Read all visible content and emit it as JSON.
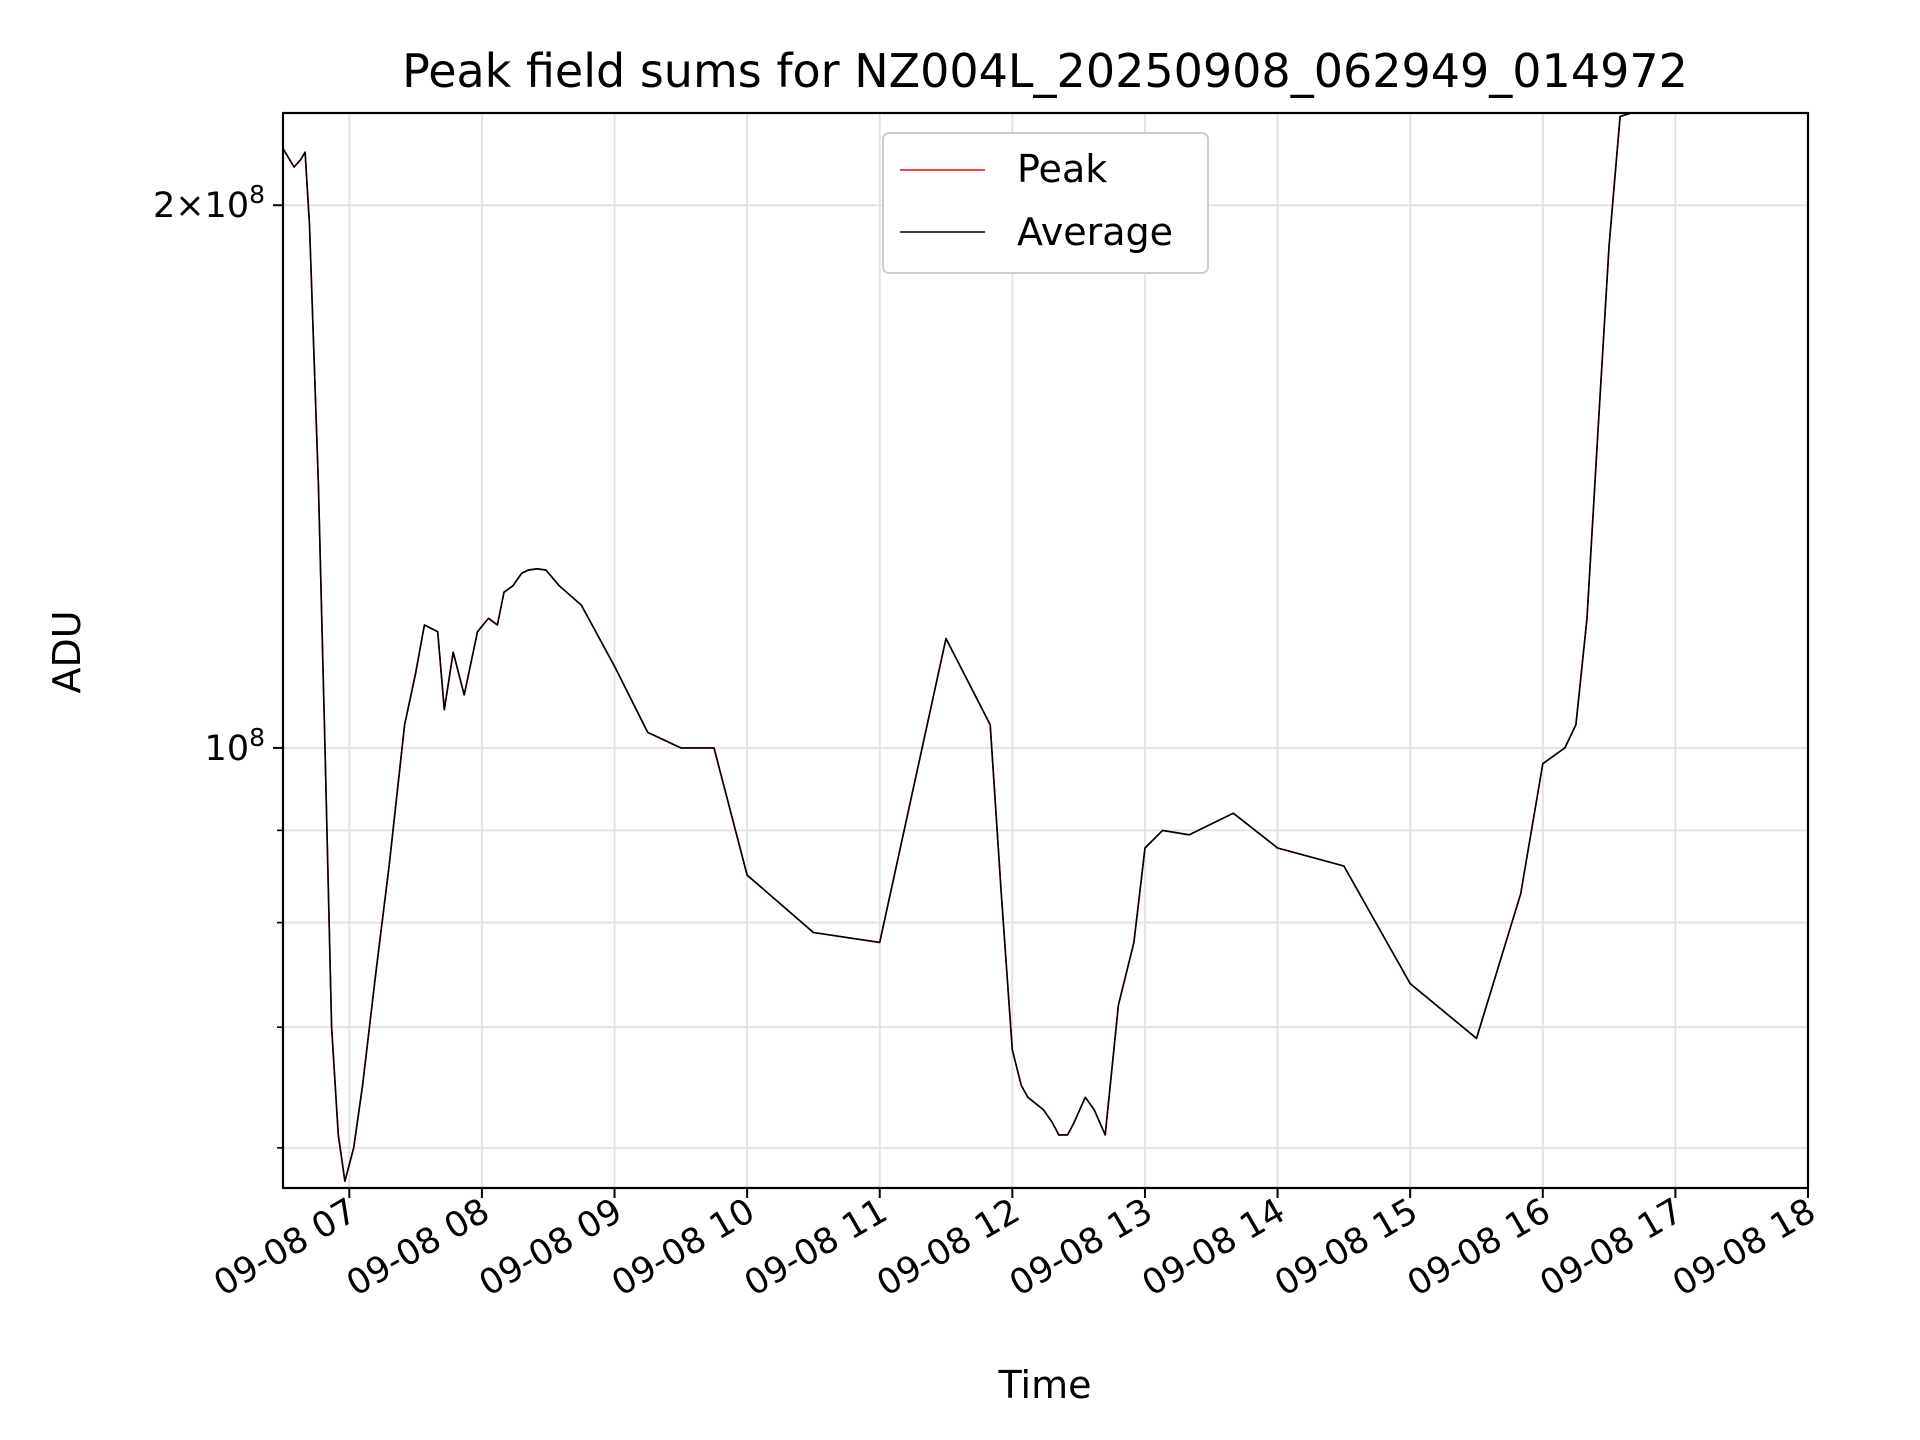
{
  "chart_data": {
    "type": "line",
    "title": "Peak field sums for NZ004L_20250908_062949_014972",
    "xlabel": "Time",
    "ylabel": "ADU",
    "y_scale": "log",
    "grid": true,
    "legend_position": "top-center",
    "xlim": [
      "09-08 06:30",
      "09-08 18:00"
    ],
    "ylim": [
      57000000,
      225000000
    ],
    "x_ticks": [
      "09-08 07",
      "09-08 08",
      "09-08 09",
      "09-08 10",
      "09-08 11",
      "09-08 12",
      "09-08 13",
      "09-08 14",
      "09-08 15",
      "09-08 16",
      "09-08 17",
      "09-08 18"
    ],
    "y_tick_labels": [
      {
        "value": 200000000,
        "base": "2×10",
        "exp": "8"
      },
      {
        "value": 100000000,
        "base": "10",
        "exp": "8"
      }
    ],
    "y_minor_ticks": [
      60000000,
      70000000,
      80000000,
      90000000
    ],
    "colors": {
      "Peak": "#ff0000",
      "Average": "#000000"
    },
    "series": [
      {
        "name": "Peak",
        "x": [
          "09-08 06:30",
          "09-08 06:35",
          "09-08 06:38",
          "09-08 06:40",
          "09-08 06:42",
          "09-08 06:46",
          "09-08 06:49",
          "09-08 06:52",
          "09-08 06:55",
          "09-08 06:58",
          "09-08 07:02",
          "09-08 07:06",
          "09-08 07:12",
          "09-08 07:18",
          "09-08 07:25",
          "09-08 07:30",
          "09-08 07:34",
          "09-08 07:40",
          "09-08 07:43",
          "09-08 07:47",
          "09-08 07:52",
          "09-08 07:58",
          "09-08 08:03",
          "09-08 08:07",
          "09-08 08:10",
          "09-08 08:14",
          "09-08 08:18",
          "09-08 08:21",
          "09-08 08:25",
          "09-08 08:29",
          "09-08 08:35",
          "09-08 08:45",
          "09-08 09:00",
          "09-08 09:15",
          "09-08 09:30",
          "09-08 09:45",
          "09-08 10:00",
          "09-08 10:30",
          "09-08 11:00",
          "09-08 11:30",
          "09-08 11:50",
          "09-08 11:55",
          "09-08 12:00",
          "09-08 12:04",
          "09-08 12:07",
          "09-08 12:14",
          "09-08 12:18",
          "09-08 12:21",
          "09-08 12:25",
          "09-08 12:28",
          "09-08 12:33",
          "09-08 12:37",
          "09-08 12:42",
          "09-08 12:48",
          "09-08 12:55",
          "09-08 13:00",
          "09-08 13:08",
          "09-08 13:20",
          "09-08 13:40",
          "09-08 14:00",
          "09-08 14:30",
          "09-08 15:00",
          "09-08 15:30",
          "09-08 15:50",
          "09-08 16:00",
          "09-08 16:10",
          "09-08 16:15",
          "09-08 16:20",
          "09-08 16:25",
          "09-08 16:30",
          "09-08 16:35",
          "09-08 16:40",
          "09-08 16:45",
          "09-08 16:50",
          "09-08 16:55",
          "09-08 17:00",
          "09-08 17:05",
          "09-08 17:10",
          "09-08 17:13",
          "09-08 17:16",
          "09-08 17:20",
          "09-08 17:23",
          "09-08 17:26",
          "09-08 17:30",
          "09-08 17:35",
          "09-08 17:40",
          "09-08 17:45",
          "09-08 17:50",
          "09-08 17:54",
          "09-08 17:57",
          "09-08 18:00"
        ],
        "y": [
          215000000,
          210000000,
          212000000,
          214000000,
          195000000,
          140000000,
          100000000,
          70000000,
          61000000,
          57500000,
          60000000,
          65000000,
          75000000,
          86000000,
          103000000,
          110000000,
          117000000,
          116000000,
          105000000,
          113000000,
          107000000,
          116000000,
          118000000,
          117000000,
          122000000,
          123000000,
          125000000,
          125500000,
          125700000,
          125500000,
          123000000,
          120000000,
          111000000,
          102000000,
          100000000,
          100000000,
          85000000,
          79000000,
          78000000,
          115000000,
          103000000,
          83000000,
          68000000,
          65000000,
          64000000,
          63000000,
          62000000,
          61000000,
          61000000,
          62000000,
          64000000,
          63000000,
          61000000,
          72000000,
          78000000,
          88000000,
          90000000,
          89500000,
          92000000,
          88000000,
          86000000,
          74000000,
          69000000,
          83000000,
          98000000,
          100000000,
          103000000,
          118000000,
          150000000,
          190000000,
          224000000,
          225000000,
          225000000,
          225000000,
          225000000,
          225000000,
          225000000,
          225000000,
          225000000,
          225000000,
          225000000,
          225000000,
          225000000,
          225000000,
          225000000,
          225000000,
          225000000,
          225000000,
          225000000,
          225000000,
          225000000
        ]
      },
      {
        "name": "Average",
        "x": [
          "09-08 06:30",
          "09-08 06:35",
          "09-08 06:38",
          "09-08 06:40",
          "09-08 06:42",
          "09-08 06:46",
          "09-08 06:49",
          "09-08 06:52",
          "09-08 06:55",
          "09-08 06:58",
          "09-08 07:02",
          "09-08 07:06",
          "09-08 07:12",
          "09-08 07:18",
          "09-08 07:25",
          "09-08 07:30",
          "09-08 07:34",
          "09-08 07:40",
          "09-08 07:43",
          "09-08 07:47",
          "09-08 07:52",
          "09-08 07:58",
          "09-08 08:03",
          "09-08 08:07",
          "09-08 08:10",
          "09-08 08:14",
          "09-08 08:18",
          "09-08 08:21",
          "09-08 08:25",
          "09-08 08:29",
          "09-08 08:35",
          "09-08 08:45",
          "09-08 09:00",
          "09-08 09:15",
          "09-08 09:30",
          "09-08 09:45",
          "09-08 10:00",
          "09-08 10:30",
          "09-08 11:00",
          "09-08 11:30",
          "09-08 11:50",
          "09-08 11:55",
          "09-08 12:00",
          "09-08 12:04",
          "09-08 12:07",
          "09-08 12:14",
          "09-08 12:18",
          "09-08 12:21",
          "09-08 12:25",
          "09-08 12:28",
          "09-08 12:33",
          "09-08 12:37",
          "09-08 12:42",
          "09-08 12:48",
          "09-08 12:55",
          "09-08 13:00",
          "09-08 13:08",
          "09-08 13:20",
          "09-08 13:40",
          "09-08 14:00",
          "09-08 14:30",
          "09-08 15:00",
          "09-08 15:30",
          "09-08 15:50",
          "09-08 16:00",
          "09-08 16:10",
          "09-08 16:15",
          "09-08 16:20",
          "09-08 16:25",
          "09-08 16:30",
          "09-08 16:35",
          "09-08 16:40",
          "09-08 16:45",
          "09-08 16:50",
          "09-08 16:55",
          "09-08 17:00",
          "09-08 17:05",
          "09-08 17:10",
          "09-08 17:13",
          "09-08 17:16",
          "09-08 17:20",
          "09-08 17:23",
          "09-08 17:26",
          "09-08 17:30",
          "09-08 17:35",
          "09-08 17:40",
          "09-08 17:45",
          "09-08 17:50",
          "09-08 17:54",
          "09-08 17:57",
          "09-08 18:00"
        ],
        "y": [
          215000000,
          210000000,
          212000000,
          214000000,
          195000000,
          140000000,
          100000000,
          70000000,
          61000000,
          57500000,
          60000000,
          65000000,
          75000000,
          86000000,
          103000000,
          110000000,
          117000000,
          116000000,
          105000000,
          113000000,
          107000000,
          116000000,
          118000000,
          117000000,
          122000000,
          123000000,
          125000000,
          125500000,
          125700000,
          125500000,
          123000000,
          120000000,
          111000000,
          102000000,
          100000000,
          100000000,
          85000000,
          79000000,
          78000000,
          115000000,
          103000000,
          83000000,
          68000000,
          65000000,
          64000000,
          63000000,
          62000000,
          61000000,
          61000000,
          62000000,
          64000000,
          63000000,
          61000000,
          72000000,
          78000000,
          88000000,
          90000000,
          89500000,
          92000000,
          88000000,
          86000000,
          74000000,
          69000000,
          83000000,
          98000000,
          100000000,
          103000000,
          118000000,
          150000000,
          190000000,
          224000000,
          225000000,
          225000000,
          225000000,
          225000000,
          225000000,
          225000000,
          225000000,
          225000000,
          225000000,
          225000000,
          225000000,
          225000000,
          225000000,
          225000000,
          225000000,
          225000000,
          225000000,
          225000000,
          225000000,
          225000000
        ]
      }
    ]
  }
}
